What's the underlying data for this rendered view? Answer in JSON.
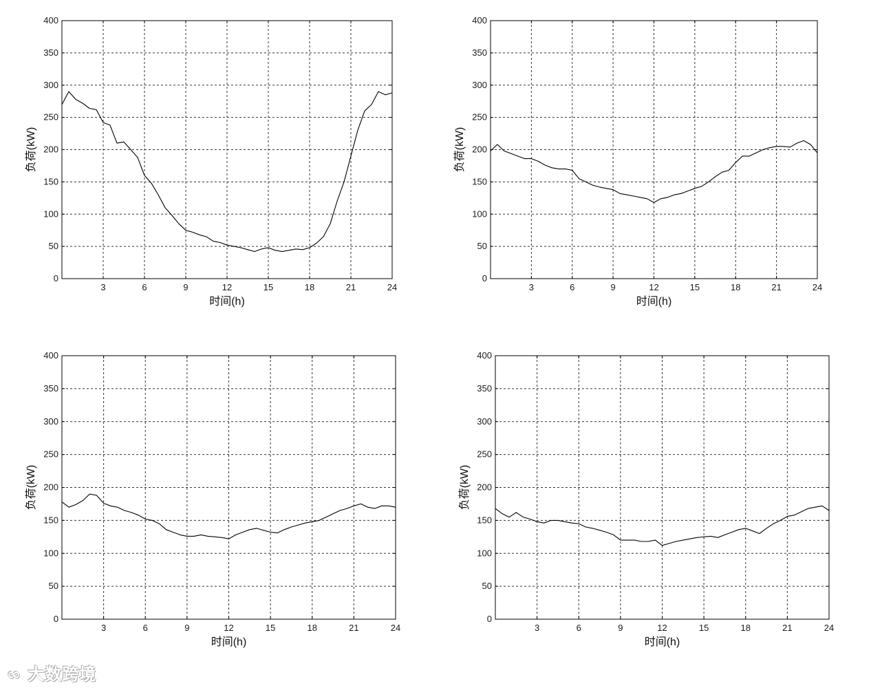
{
  "chart_data": [
    {
      "type": "line",
      "xlabel": "时间(h)",
      "ylabel": "负荷(kW)",
      "xlim": [
        0,
        24
      ],
      "ylim": [
        0,
        400
      ],
      "xticks": [
        3,
        6,
        9,
        12,
        15,
        18,
        21,
        24
      ],
      "yticks": [
        0,
        50,
        100,
        150,
        200,
        250,
        300,
        350,
        400
      ],
      "grid": true,
      "x": [
        0,
        0.5,
        1,
        1.5,
        2,
        2.5,
        3,
        3.5,
        4,
        4.5,
        5,
        5.5,
        6,
        6.5,
        7,
        7.5,
        8,
        8.5,
        9,
        9.5,
        10,
        10.5,
        11,
        11.5,
        12,
        12.5,
        13,
        13.5,
        14,
        14.5,
        15,
        15.5,
        16,
        16.5,
        17,
        17.5,
        18,
        18.5,
        19,
        19.5,
        20,
        20.5,
        21,
        21.5,
        22,
        22.5,
        23,
        23.5,
        24
      ],
      "y": [
        270,
        290,
        278,
        272,
        264,
        262,
        242,
        238,
        210,
        212,
        200,
        188,
        160,
        148,
        130,
        110,
        98,
        85,
        75,
        72,
        68,
        65,
        58,
        56,
        52,
        50,
        48,
        45,
        42,
        46,
        48,
        44,
        42,
        44,
        46,
        45,
        48,
        55,
        65,
        85,
        120,
        150,
        190,
        230,
        260,
        270,
        290,
        285,
        288
      ]
    },
    {
      "type": "line",
      "xlabel": "时间(h)",
      "ylabel": "负荷(kW)",
      "xlim": [
        0,
        24
      ],
      "ylim": [
        0,
        400
      ],
      "xticks": [
        3,
        6,
        9,
        12,
        15,
        18,
        21,
        24
      ],
      "yticks": [
        0,
        50,
        100,
        150,
        200,
        250,
        300,
        350,
        400
      ],
      "grid": true,
      "x": [
        0,
        0.5,
        1,
        1.5,
        2,
        2.5,
        3,
        3.5,
        4,
        4.5,
        5,
        5.5,
        6,
        6.5,
        7,
        7.5,
        8,
        8.5,
        9,
        9.5,
        10,
        10.5,
        11,
        11.5,
        12,
        12.5,
        13,
        13.5,
        14,
        14.5,
        15,
        15.5,
        16,
        16.5,
        17,
        17.5,
        18,
        18.5,
        19,
        19.5,
        20,
        20.5,
        21,
        21.5,
        22,
        22.5,
        23,
        23.5,
        24
      ],
      "y": [
        198,
        208,
        198,
        194,
        190,
        186,
        186,
        182,
        176,
        172,
        170,
        170,
        168,
        155,
        150,
        145,
        142,
        140,
        138,
        132,
        130,
        128,
        126,
        124,
        118,
        124,
        126,
        130,
        132,
        136,
        140,
        143,
        150,
        158,
        165,
        168,
        180,
        190,
        190,
        195,
        200,
        203,
        205,
        205,
        204,
        210,
        214,
        208,
        195
      ]
    },
    {
      "type": "line",
      "xlabel": "时间(h)",
      "ylabel": "负荷(kW)",
      "xlim": [
        0,
        24
      ],
      "ylim": [
        0,
        400
      ],
      "xticks": [
        3,
        6,
        9,
        12,
        15,
        18,
        21,
        24
      ],
      "yticks": [
        0,
        50,
        100,
        150,
        200,
        250,
        300,
        350,
        400
      ],
      "grid": true,
      "x": [
        0,
        0.5,
        1,
        1.5,
        2,
        2.5,
        3,
        3.5,
        4,
        4.5,
        5,
        5.5,
        6,
        6.5,
        7,
        7.5,
        8,
        8.5,
        9,
        9.5,
        10,
        10.5,
        11,
        11.5,
        12,
        12.5,
        13,
        13.5,
        14,
        14.5,
        15,
        15.5,
        16,
        16.5,
        17,
        17.5,
        18,
        18.5,
        19,
        19.5,
        20,
        20.5,
        21,
        21.5,
        22,
        22.5,
        23,
        23.5,
        24
      ],
      "y": [
        178,
        170,
        174,
        180,
        190,
        188,
        176,
        172,
        170,
        165,
        162,
        158,
        152,
        150,
        145,
        136,
        132,
        128,
        126,
        126,
        128,
        126,
        125,
        124,
        122,
        128,
        132,
        136,
        138,
        135,
        132,
        131,
        136,
        140,
        143,
        146,
        148,
        150,
        155,
        160,
        165,
        168,
        172,
        175,
        170,
        168,
        172,
        172,
        170
      ]
    },
    {
      "type": "line",
      "xlabel": "时间(h)",
      "ylabel": "负荷(kW)",
      "xlim": [
        0,
        24
      ],
      "ylim": [
        0,
        400
      ],
      "xticks": [
        3,
        6,
        9,
        12,
        15,
        18,
        21,
        24
      ],
      "yticks": [
        0,
        50,
        100,
        150,
        200,
        250,
        300,
        350,
        400
      ],
      "grid": true,
      "x": [
        0,
        0.5,
        1,
        1.5,
        2,
        2.5,
        3,
        3.5,
        4,
        4.5,
        5,
        5.5,
        6,
        6.5,
        7,
        7.5,
        8,
        8.5,
        9,
        9.5,
        10,
        10.5,
        11,
        11.5,
        12,
        12.5,
        13,
        13.5,
        14,
        14.5,
        15,
        15.5,
        16,
        16.5,
        17,
        17.5,
        18,
        18.5,
        19,
        19.5,
        20,
        20.5,
        21,
        21.5,
        22,
        22.5,
        23,
        23.5,
        24
      ],
      "y": [
        168,
        160,
        155,
        162,
        155,
        152,
        148,
        146,
        150,
        150,
        148,
        146,
        145,
        140,
        138,
        135,
        132,
        128,
        120,
        120,
        120,
        118,
        118,
        120,
        112,
        115,
        118,
        120,
        122,
        124,
        125,
        126,
        124,
        128,
        132,
        136,
        138,
        134,
        130,
        138,
        145,
        150,
        156,
        158,
        163,
        168,
        170,
        172,
        165
      ]
    }
  ],
  "watermark": "大数跨境"
}
